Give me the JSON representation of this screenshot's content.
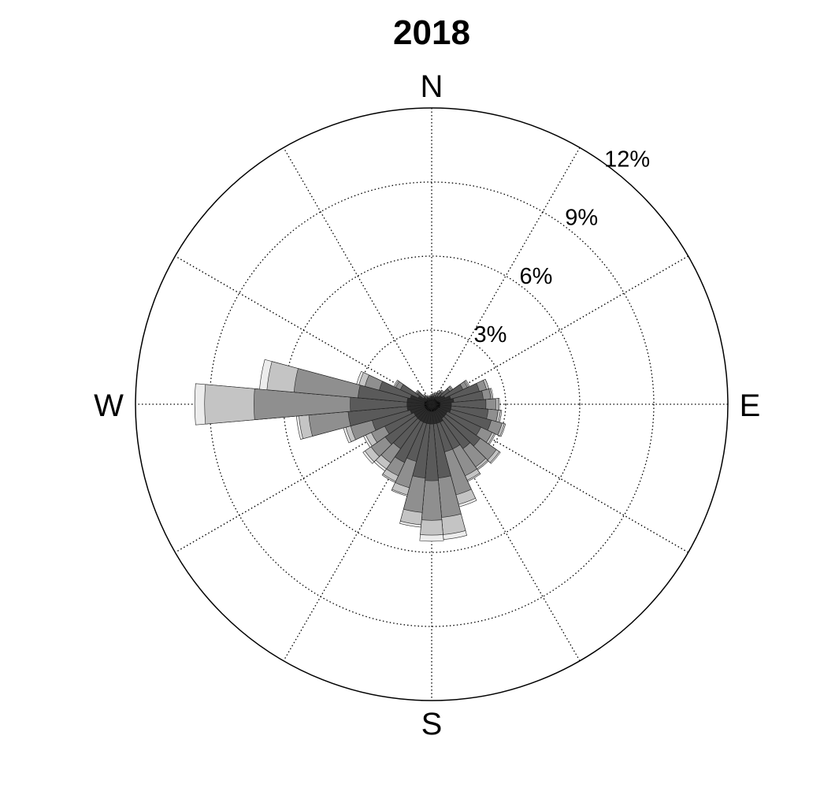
{
  "chart_data": {
    "type": "windrose",
    "title": "2018",
    "directions": [
      "N",
      "E",
      "S",
      "W"
    ],
    "radial_unit": "%",
    "radial_ticks": [
      3,
      6,
      9,
      12
    ],
    "radial_tick_labels": [
      "3%",
      "6%",
      "9%",
      "12%"
    ],
    "radial_max": 12,
    "sector_count": 36,
    "sector_width_deg": 10,
    "legend": "none",
    "grid": true,
    "level_colors": [
      "#000000",
      "#2b2b2b",
      "#5a5a5a",
      "#8f8f8f",
      "#c4c4c4",
      "#ececec"
    ],
    "sectors": [
      {
        "dir": 0,
        "levels": [
          0.2,
          0.3,
          0.35,
          0.35,
          0.35,
          0.4
        ]
      },
      {
        "dir": 10,
        "levels": [
          0.2,
          0.3,
          0.35,
          0.4,
          0.4,
          0.45
        ]
      },
      {
        "dir": 20,
        "levels": [
          0.2,
          0.3,
          0.4,
          0.45,
          0.5,
          0.5
        ]
      },
      {
        "dir": 30,
        "levels": [
          0.25,
          0.35,
          0.5,
          0.55,
          0.55,
          0.6
        ]
      },
      {
        "dir": 40,
        "levels": [
          0.25,
          0.4,
          0.6,
          0.65,
          0.7,
          0.7
        ]
      },
      {
        "dir": 50,
        "levels": [
          0.25,
          0.5,
          0.9,
          1.0,
          1.05,
          1.05
        ]
      },
      {
        "dir": 60,
        "levels": [
          0.25,
          0.6,
          1.4,
          1.6,
          1.65,
          1.7
        ]
      },
      {
        "dir": 70,
        "levels": [
          0.3,
          0.8,
          2.0,
          2.3,
          2.4,
          2.4
        ]
      },
      {
        "dir": 80,
        "levels": [
          0.35,
          0.9,
          2.1,
          2.4,
          2.45,
          2.5
        ]
      },
      {
        "dir": 90,
        "levels": [
          0.35,
          0.8,
          2.2,
          2.6,
          2.7,
          2.75
        ]
      },
      {
        "dir": 100,
        "levels": [
          0.35,
          0.8,
          2.3,
          2.7,
          2.8,
          2.85
        ]
      },
      {
        "dir": 110,
        "levels": [
          0.35,
          0.8,
          2.5,
          2.95,
          3.05,
          3.1
        ]
      },
      {
        "dir": 120,
        "levels": [
          0.3,
          0.7,
          2.2,
          2.7,
          2.8,
          2.85
        ]
      },
      {
        "dir": 130,
        "levels": [
          0.3,
          0.7,
          2.4,
          3.2,
          3.35,
          3.4
        ]
      },
      {
        "dir": 140,
        "levels": [
          0.3,
          0.7,
          2.2,
          3.1,
          3.2,
          3.25
        ]
      },
      {
        "dir": 150,
        "levels": [
          0.3,
          0.8,
          2.0,
          3.2,
          3.4,
          3.45
        ]
      },
      {
        "dir": 160,
        "levels": [
          0.3,
          0.8,
          2.0,
          3.8,
          4.2,
          4.3
        ]
      },
      {
        "dir": 170,
        "levels": [
          0.3,
          0.8,
          3.0,
          4.6,
          5.3,
          5.5
        ]
      },
      {
        "dir": 180,
        "levels": [
          0.3,
          0.8,
          3.1,
          4.7,
          5.3,
          5.55
        ]
      },
      {
        "dir": 190,
        "levels": [
          0.3,
          0.8,
          3.0,
          4.4,
          4.9,
          5.0
        ]
      },
      {
        "dir": 200,
        "levels": [
          0.3,
          0.8,
          2.4,
          3.5,
          3.8,
          3.85
        ]
      },
      {
        "dir": 210,
        "levels": [
          0.3,
          0.8,
          2.6,
          3.2,
          3.45,
          3.5
        ]
      },
      {
        "dir": 220,
        "levels": [
          0.3,
          0.8,
          2.2,
          2.9,
          3.2,
          3.3
        ]
      },
      {
        "dir": 230,
        "levels": [
          0.3,
          0.8,
          2.3,
          3.0,
          3.3,
          3.4
        ]
      },
      {
        "dir": 240,
        "levels": [
          0.3,
          0.8,
          2.1,
          2.7,
          2.95,
          3.05
        ]
      },
      {
        "dir": 250,
        "levels": [
          0.3,
          0.9,
          2.5,
          3.4,
          3.6,
          3.7
        ]
      },
      {
        "dir": 260,
        "levels": [
          0.3,
          1.0,
          3.4,
          5.0,
          5.4,
          5.5
        ]
      },
      {
        "dir": 270,
        "levels": [
          0.3,
          1.0,
          3.3,
          7.2,
          9.2,
          9.6
        ]
      },
      {
        "dir": 280,
        "levels": [
          0.3,
          1.0,
          3.0,
          5.6,
          6.7,
          7.0
        ]
      },
      {
        "dir": 290,
        "levels": [
          0.3,
          0.9,
          2.2,
          2.8,
          3.05,
          3.15
        ]
      },
      {
        "dir": 300,
        "levels": [
          0.25,
          0.6,
          1.4,
          1.6,
          1.65,
          1.7
        ]
      },
      {
        "dir": 310,
        "levels": [
          0.25,
          0.4,
          0.7,
          0.75,
          0.8,
          0.8
        ]
      },
      {
        "dir": 320,
        "levels": [
          0.2,
          0.3,
          0.4,
          0.45,
          0.45,
          0.5
        ]
      },
      {
        "dir": 330,
        "levels": [
          0.2,
          0.3,
          0.35,
          0.35,
          0.35,
          0.4
        ]
      },
      {
        "dir": 340,
        "levels": [
          0.2,
          0.25,
          0.3,
          0.3,
          0.3,
          0.35
        ]
      },
      {
        "dir": 350,
        "levels": [
          0.2,
          0.3,
          0.3,
          0.35,
          0.35,
          0.35
        ]
      }
    ]
  }
}
